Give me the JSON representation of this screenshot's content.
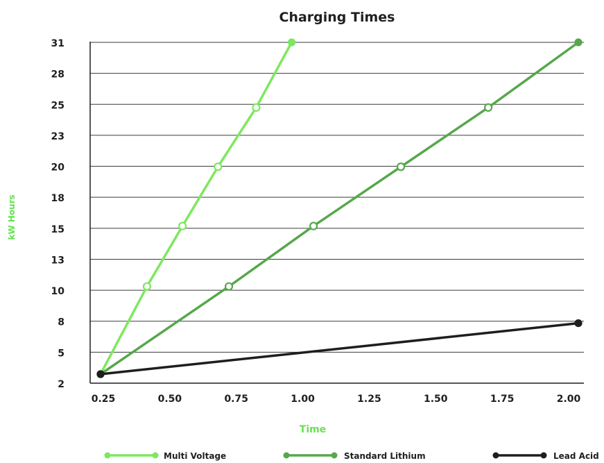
{
  "chart_data": {
    "type": "line",
    "title": "Charging Times",
    "xlabel": "Time",
    "ylabel": "kW Hours",
    "x_ticks": [
      "0.25",
      "0.50",
      "0.75",
      "1.00",
      "1.25",
      "1.50",
      "1.75",
      "2.00"
    ],
    "y_ticks": [
      "2",
      "5",
      "8",
      "10",
      "13",
      "15",
      "18",
      "20",
      "23",
      "25",
      "28",
      "31"
    ],
    "xlim": [
      0.25,
      2.0
    ],
    "ylim": [
      2.5,
      30.5
    ],
    "grid": "horizontal",
    "legend_position": "bottom",
    "series": [
      {
        "name": "Multi Voltage",
        "color": "#7de85f",
        "marker": "open-circle",
        "points": [
          [
            0.25,
            2.5
          ],
          [
            0.42,
            9.9
          ],
          [
            0.55,
            15.0
          ],
          [
            0.68,
            20.0
          ],
          [
            0.82,
            25.0
          ],
          [
            0.95,
            30.5
          ]
        ]
      },
      {
        "name": "Standard Lithium",
        "color": "#55a84a",
        "marker": "open-circle",
        "points": [
          [
            0.25,
            2.5
          ],
          [
            0.72,
            9.9
          ],
          [
            1.03,
            15.0
          ],
          [
            1.35,
            20.0
          ],
          [
            1.67,
            25.0
          ],
          [
            2.0,
            30.5
          ]
        ]
      },
      {
        "name": "Lead Acid",
        "color": "#1e1e1e",
        "marker": "filled-circle",
        "points": [
          [
            0.25,
            2.5
          ],
          [
            2.0,
            6.8
          ]
        ]
      }
    ]
  }
}
